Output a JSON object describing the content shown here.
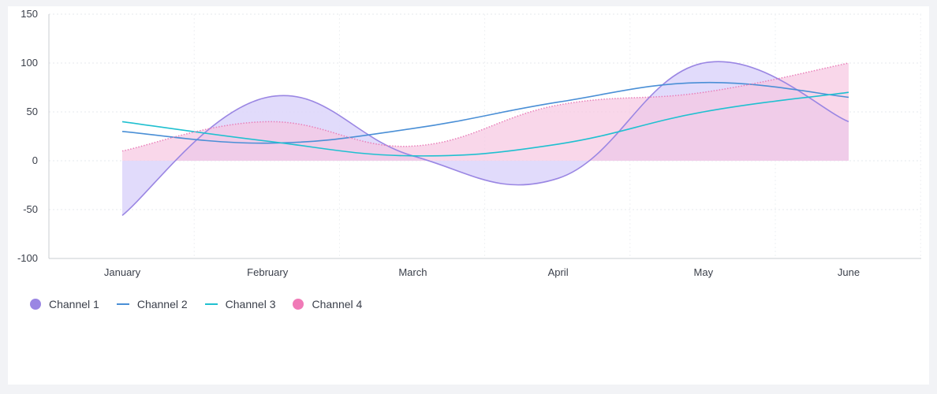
{
  "chart_data": {
    "type": "area",
    "categories": [
      "January",
      "February",
      "March",
      "April",
      "May",
      "June"
    ],
    "ylim": [
      -100,
      150
    ],
    "yticks": [
      -100,
      -50,
      0,
      50,
      100,
      150
    ],
    "grid": true,
    "legend_placement": "bottom-left",
    "series": [
      {
        "name": "Channel 1",
        "style": "area",
        "color": "#9a86e3",
        "fill": "#dcd5fa",
        "values": [
          -56,
          65,
          5,
          -18,
          100,
          40
        ]
      },
      {
        "name": "Channel 2",
        "style": "line",
        "color": "#4a8fd6",
        "values": [
          30,
          18,
          33,
          60,
          80,
          65
        ]
      },
      {
        "name": "Channel 3",
        "style": "line",
        "color": "#20c0d0",
        "values": [
          40,
          20,
          5,
          17,
          50,
          70
        ]
      },
      {
        "name": "Channel 4",
        "style": "area-dotted",
        "color": "#e97fb9",
        "fill": "#f7c6e1",
        "values": [
          10,
          40,
          15,
          57,
          70,
          100
        ]
      }
    ]
  }
}
